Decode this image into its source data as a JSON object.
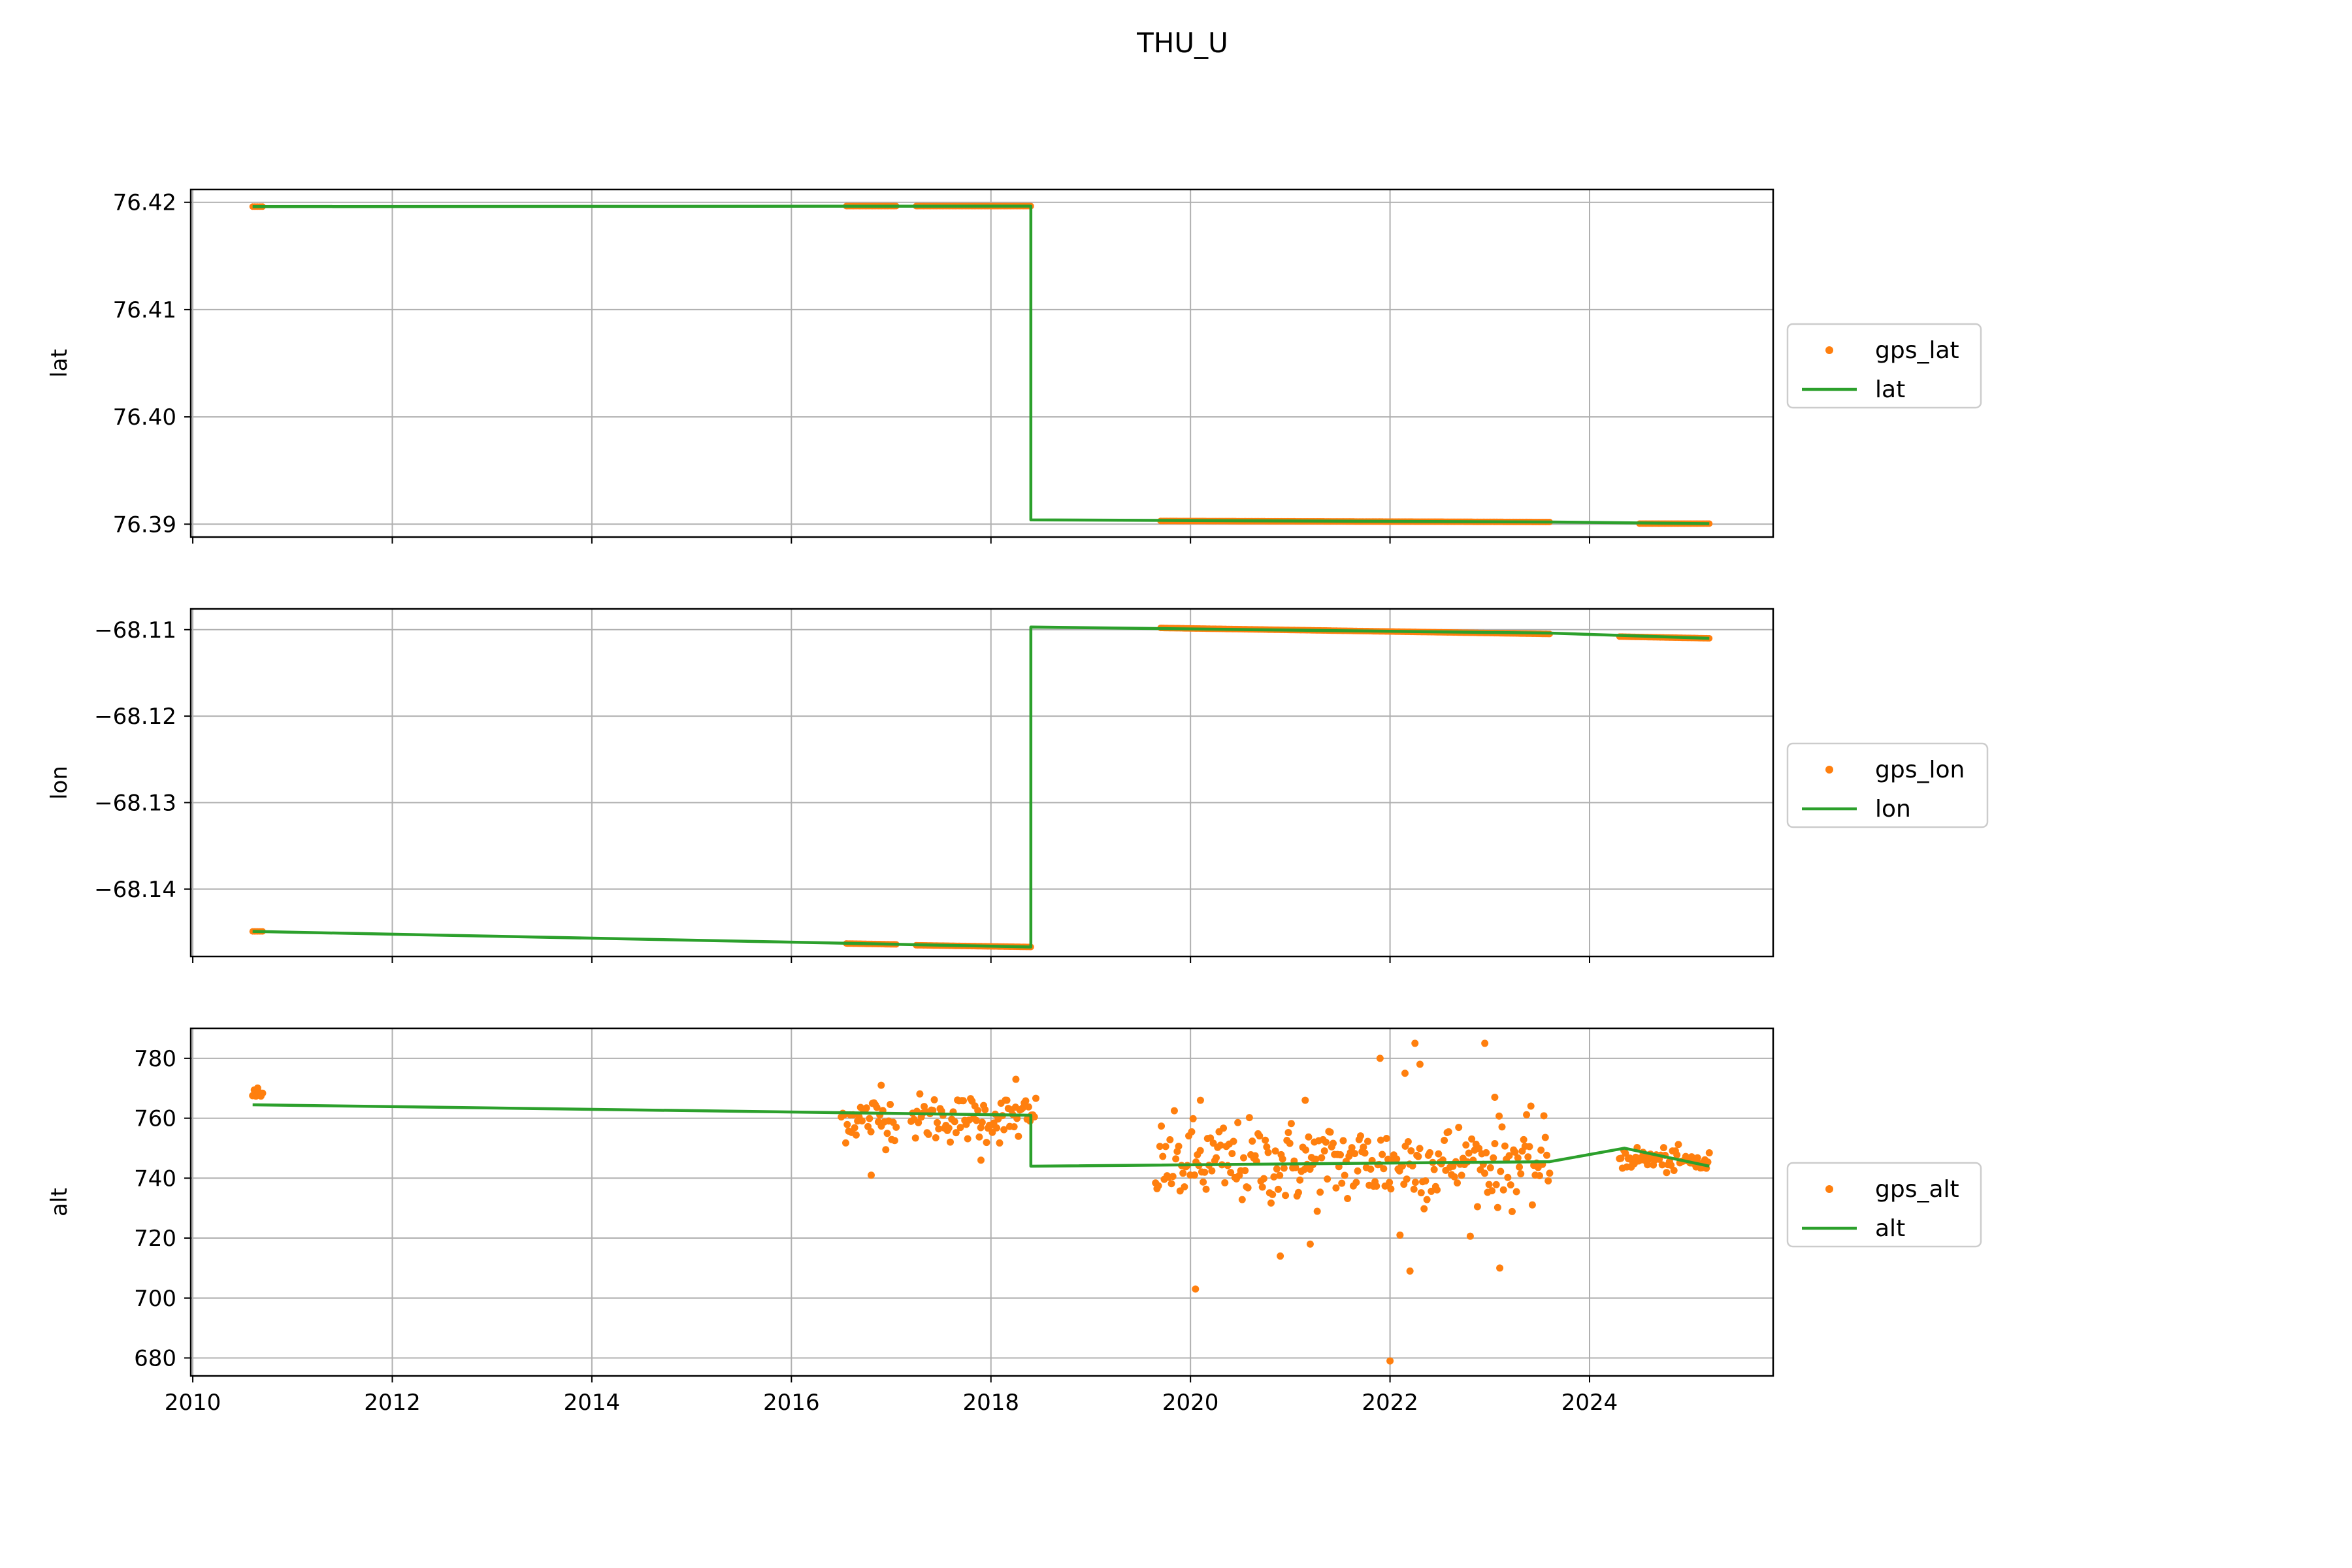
{
  "figure": {
    "title": "THU_U"
  },
  "colors": {
    "gps": "#ff7f0e",
    "model": "#2ca02c",
    "grid": "#b0b0b0"
  },
  "chart_data": [
    {
      "type": "scatter",
      "ylabel": "lat",
      "xlim": [
        2009.98,
        2025.84
      ],
      "ylim": [
        76.3888,
        76.4212
      ],
      "yticks": [
        76.39,
        76.4,
        76.41,
        76.42
      ],
      "ytick_labels": [
        "76.39",
        "76.40",
        "76.41",
        "76.42"
      ],
      "xticks": [
        2010,
        2012,
        2014,
        2016,
        2018,
        2020,
        2022,
        2024
      ],
      "xtick_labels": [],
      "legend": {
        "placement": "right"
      },
      "series": [
        {
          "name": "gps_lat",
          "kind": "points",
          "segments": [
            {
              "x": [
                2010.6,
                2010.7
              ],
              "y": [
                76.4196,
                76.4196
              ]
            },
            {
              "x": [
                2016.55,
                2017.05
              ],
              "y": [
                76.41965,
                76.41965
              ]
            },
            {
              "x": [
                2017.25,
                2018.4
              ],
              "y": [
                76.41965,
                76.41965
              ]
            },
            {
              "x": [
                2019.7,
                2023.6
              ],
              "y": [
                76.3903,
                76.3902
              ]
            },
            {
              "x": [
                2024.5,
                2025.2
              ],
              "y": [
                76.39005,
                76.39005
              ]
            }
          ]
        },
        {
          "name": "lat",
          "kind": "line",
          "x": [
            2010.6,
            2018.4,
            2018.4,
            2023.6,
            2025.2
          ],
          "y": [
            76.4196,
            76.41965,
            76.3904,
            76.3902,
            76.39005
          ]
        }
      ]
    },
    {
      "type": "scatter",
      "ylabel": "lon",
      "xlim": [
        2009.98,
        2025.84
      ],
      "ylim": [
        -68.1478,
        -68.1076
      ],
      "yticks": [
        -68.14,
        -68.13,
        -68.12,
        -68.11
      ],
      "ytick_labels": [
        "−68.14",
        "−68.13",
        "−68.12",
        "−68.11"
      ],
      "xticks": [
        2010,
        2012,
        2014,
        2016,
        2018,
        2020,
        2022,
        2024
      ],
      "xtick_labels": [],
      "legend": {
        "placement": "right"
      },
      "series": [
        {
          "name": "gps_lon",
          "kind": "points",
          "segments": [
            {
              "x": [
                2010.6,
                2010.7
              ],
              "y": [
                -68.1449,
                -68.1449
              ]
            },
            {
              "x": [
                2016.55,
                2017.05
              ],
              "y": [
                -68.1463,
                -68.1464
              ]
            },
            {
              "x": [
                2017.25,
                2018.4
              ],
              "y": [
                -68.1465,
                -68.1467
              ]
            },
            {
              "x": [
                2019.7,
                2023.6
              ],
              "y": [
                -68.1098,
                -68.1105
              ]
            },
            {
              "x": [
                2024.3,
                2025.2
              ],
              "y": [
                -68.1108,
                -68.111
              ]
            }
          ]
        },
        {
          "name": "lon",
          "kind": "line",
          "x": [
            2010.6,
            2018.4,
            2018.4,
            2023.6,
            2025.2
          ],
          "y": [
            -68.1449,
            -68.1467,
            -68.1097,
            -68.1104,
            -68.111
          ]
        }
      ]
    },
    {
      "type": "scatter",
      "ylabel": "alt",
      "xlim": [
        2009.98,
        2025.84
      ],
      "ylim": [
        674,
        790
      ],
      "yticks": [
        680,
        700,
        720,
        740,
        760,
        780
      ],
      "ytick_labels": [
        "680",
        "700",
        "720",
        "740",
        "760",
        "780"
      ],
      "xticks": [
        2010,
        2012,
        2014,
        2016,
        2018,
        2020,
        2022,
        2024
      ],
      "xtick_labels": [
        "2010",
        "2012",
        "2014",
        "2016",
        "2018",
        "2020",
        "2022",
        "2024"
      ],
      "legend": {
        "placement": "right"
      },
      "series": [
        {
          "name": "gps_alt",
          "kind": "points",
          "segments": [
            {
              "x": [
                2010.6,
                2010.7
              ],
              "y": [
                768,
                768
              ],
              "spread": 1.5
            },
            {
              "x": [
                2016.5,
                2017.05
              ],
              "y": [
                760,
                760
              ],
              "spread": 4
            },
            {
              "x": [
                2017.2,
                2018.45
              ],
              "y": [
                760,
                760
              ],
              "spread": 4
            },
            {
              "x": [
                2019.65,
                2023.6
              ],
              "y": [
                745,
                745
              ],
              "spread": 7
            },
            {
              "x": [
                2024.3,
                2025.2
              ],
              "y": [
                747,
                745
              ],
              "spread": 2
            }
          ],
          "outliers": {
            "x": [
              2020.05,
              2020.1,
              2020.9,
              2021.2,
              2021.9,
              2022.0,
              2022.15,
              2022.2,
              2022.25,
              2022.3,
              2022.95,
              2023.05,
              2023.1,
              2016.8,
              2016.9,
              2017.9,
              2018.25,
              2021.15,
              2022.1
            ],
            "y": [
              703,
              766,
              714,
              718,
              780,
              679,
              775,
              709,
              785,
              778,
              785,
              767,
              710,
              741,
              771,
              746,
              773,
              766,
              721
            ]
          }
        },
        {
          "name": "alt",
          "kind": "line",
          "x": [
            2010.6,
            2018.4,
            2018.4,
            2023.6,
            2024.35,
            2025.2
          ],
          "y": [
            764.5,
            761,
            744,
            745.5,
            750,
            744
          ]
        }
      ]
    }
  ]
}
